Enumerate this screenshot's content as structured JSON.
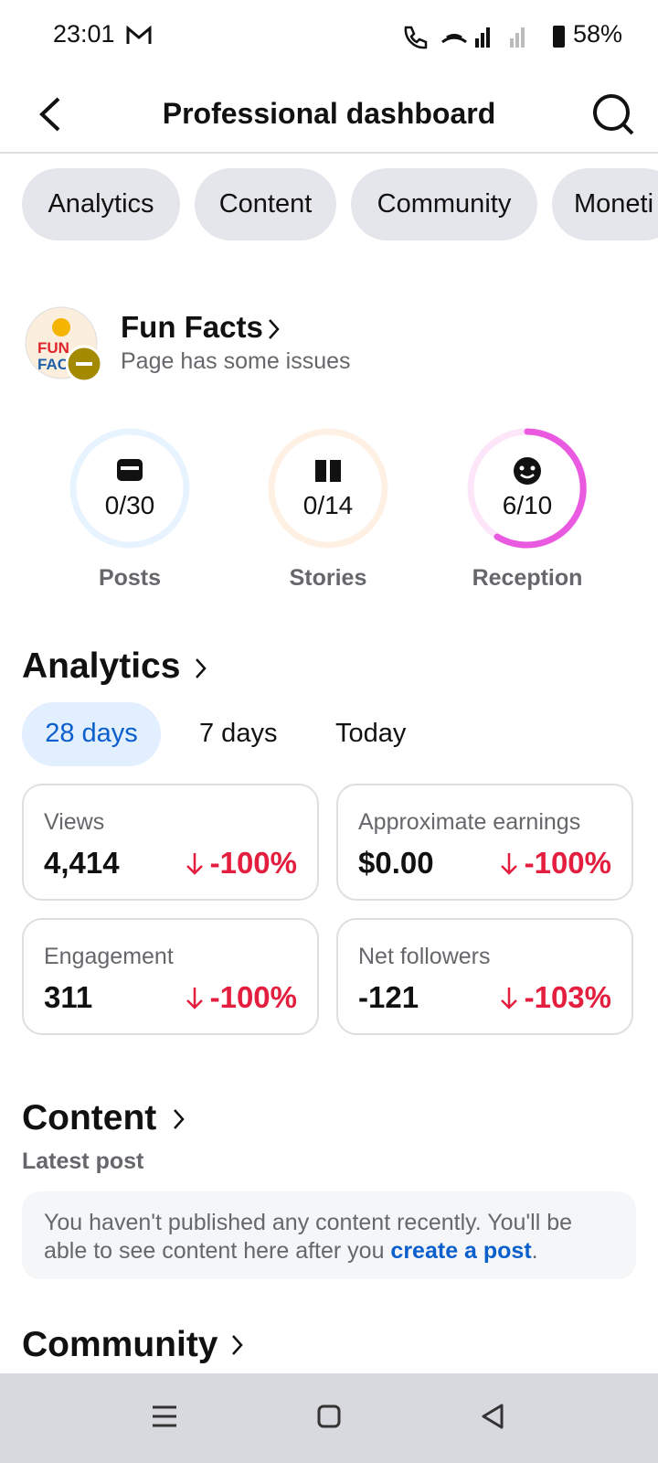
{
  "status_bar": {
    "time": "23:01",
    "battery": "58%"
  },
  "header": {
    "title": "Professional dashboard"
  },
  "tabs": [
    "Analytics",
    "Content",
    "Community",
    "Moneti"
  ],
  "page": {
    "name": "Fun Facts",
    "status": "Page has some issues"
  },
  "goals": [
    {
      "value": "0/30",
      "label": "Posts"
    },
    {
      "value": "0/14",
      "label": "Stories"
    },
    {
      "value": "6/10",
      "label": "Reception"
    }
  ],
  "analytics": {
    "title": "Analytics",
    "ranges": [
      "28 days",
      "7 days",
      "Today"
    ],
    "cards": [
      {
        "label": "Views",
        "value": "4,414",
        "change": "-100%"
      },
      {
        "label": "Approximate earnings",
        "value": "$0.00",
        "change": "-100%"
      },
      {
        "label": "Engagement",
        "value": "311",
        "change": "-100%"
      },
      {
        "label": "Net followers",
        "value": "-121",
        "change": "-103%"
      }
    ]
  },
  "content": {
    "title": "Content",
    "subtitle": "Latest post",
    "message": "You haven't published any content recently. You'll be able to see content here after you ",
    "link": "create a post",
    "message_end": "."
  },
  "community": {
    "title": "Community"
  }
}
